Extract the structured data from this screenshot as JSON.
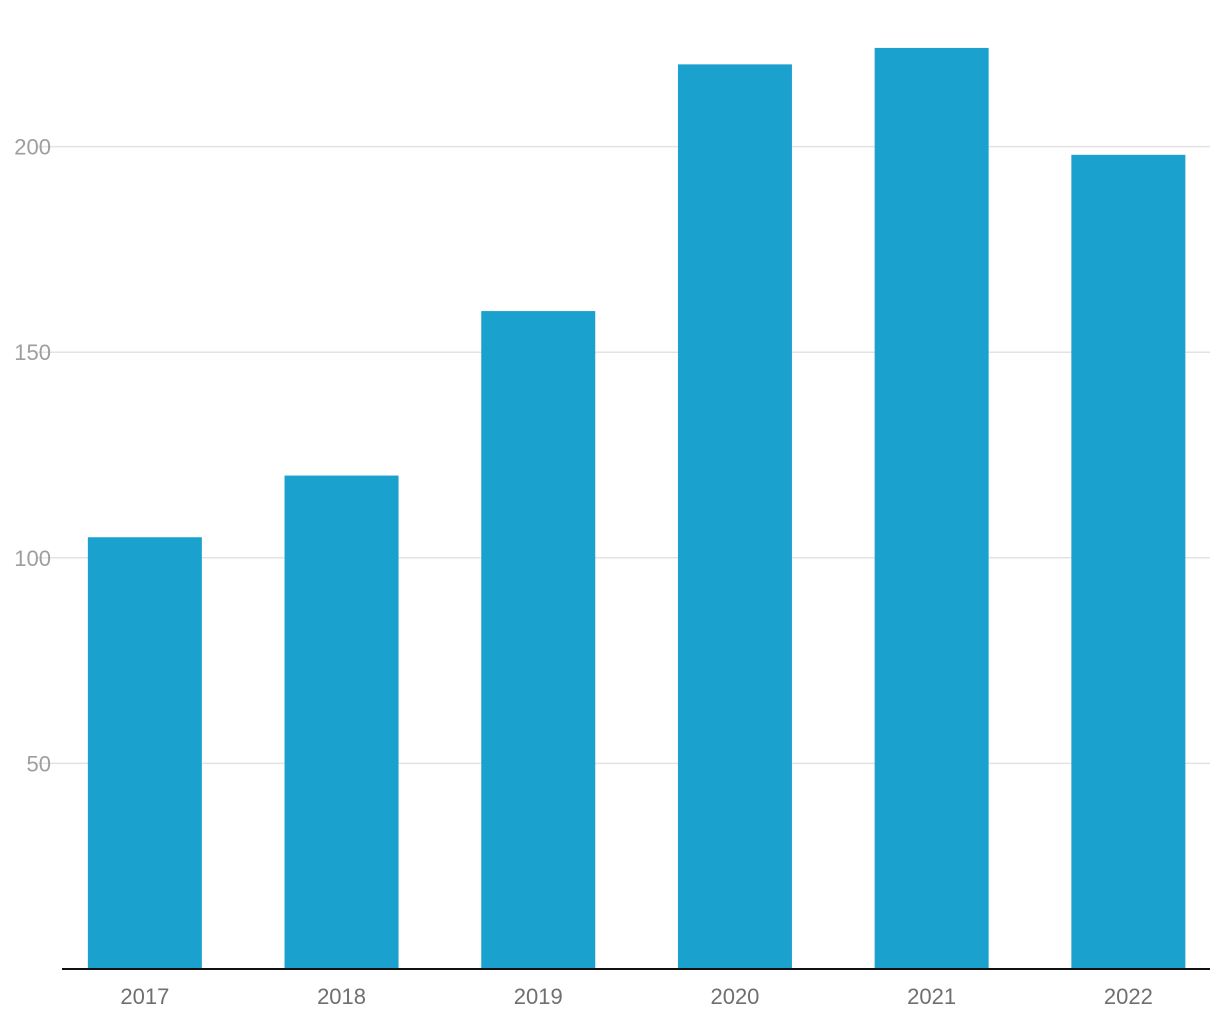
{
  "chart_data": {
    "type": "bar",
    "categories": [
      "2017",
      "2018",
      "2019",
      "2020",
      "2021",
      "2022"
    ],
    "values": [
      105,
      120,
      160,
      220,
      224,
      198
    ],
    "title": "",
    "xlabel": "",
    "ylabel": "",
    "ylim": [
      0,
      224
    ],
    "yticks": [
      50,
      100,
      150,
      200
    ],
    "ytick_labels": [
      "50",
      "100",
      "150",
      "200"
    ],
    "grid": "horizontal",
    "legend": "none",
    "colors": {
      "bar": "#1aa1cd",
      "grid": "#e3e3e3",
      "axis": "#111111",
      "ytick": "#9e9e9e",
      "xtick": "#6f6f6f"
    }
  }
}
